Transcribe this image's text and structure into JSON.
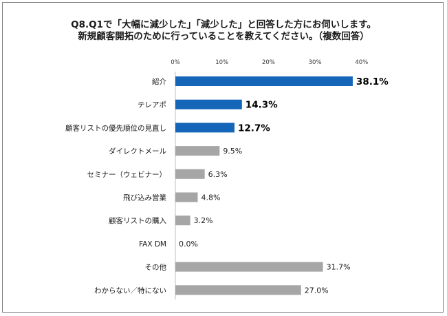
{
  "chart_data": {
    "type": "bar",
    "orientation": "horizontal",
    "title": "Q8.Q1で「大幅に減少した」「減少した」と回答した方にお伺いします。",
    "subtitle": "新規顧客開拓のために行っていることを教えてください。（複数回答）",
    "categories": [
      "紹介",
      "テレアポ",
      "顧客リストの優先順位の見直し",
      "ダイレクトメール",
      "セミナー（ウェビナー）",
      "飛び込み営業",
      "顧客リストの購入",
      "FAX DM",
      "その他",
      "わからない／特にない"
    ],
    "values": [
      38.1,
      14.3,
      12.7,
      9.5,
      6.3,
      4.8,
      3.2,
      0.0,
      31.7,
      27.0
    ],
    "value_labels": [
      "38.1%",
      "14.3%",
      "12.7%",
      "9.5%",
      "6.3%",
      "4.8%",
      "3.2%",
      "0.0%",
      "31.7%",
      "27.0%"
    ],
    "highlighted": [
      true,
      true,
      true,
      false,
      false,
      false,
      false,
      false,
      false,
      false
    ],
    "x_ticks": [
      0,
      10,
      20,
      30,
      40
    ],
    "x_tick_labels": [
      "0%",
      "10%",
      "20%",
      "30%",
      "40%"
    ],
    "xlim": [
      0,
      40
    ],
    "grid": false,
    "colors": {
      "highlight": "#1565b8",
      "default": "#a6a6a6"
    }
  }
}
